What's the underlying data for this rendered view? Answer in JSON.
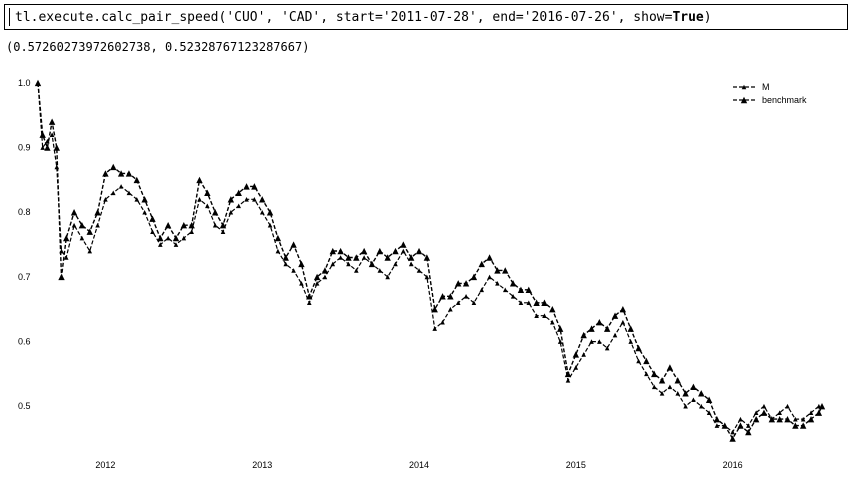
{
  "cell": {
    "code_prefix": "tl.execute.calc_pair_speed('CUO', 'CAD', start='2011-07-28', end='2016-07-26', show=",
    "code_keyword": "True",
    "code_suffix": ")"
  },
  "output": {
    "text": "(0.57260273972602738, 0.52328767123287667)"
  },
  "chart_data": {
    "type": "line",
    "title": "",
    "xlabel": "",
    "ylabel": "",
    "xlim": [
      2011.57,
      2016.57
    ],
    "ylim": [
      0.44,
      1.02
    ],
    "xticks": [
      "2012",
      "2013",
      "2014",
      "2015",
      "2016"
    ],
    "yticks": [
      "1.0",
      "0.9",
      "0.8",
      "0.7",
      "0.6",
      "0.5"
    ],
    "legend_position": "top-right",
    "grid": false,
    "series": [
      {
        "name": "M",
        "style": "dashed-small-triangle",
        "x": [
          2011.57,
          2011.6,
          2011.63,
          2011.66,
          2011.69,
          2011.72,
          2011.75,
          2011.8,
          2011.85,
          2011.9,
          2011.95,
          2012.0,
          2012.05,
          2012.1,
          2012.15,
          2012.2,
          2012.25,
          2012.3,
          2012.35,
          2012.4,
          2012.45,
          2012.5,
          2012.55,
          2012.6,
          2012.65,
          2012.7,
          2012.75,
          2012.8,
          2012.85,
          2012.9,
          2012.95,
          2013.0,
          2013.05,
          2013.1,
          2013.15,
          2013.2,
          2013.25,
          2013.3,
          2013.35,
          2013.4,
          2013.45,
          2013.5,
          2013.55,
          2013.6,
          2013.65,
          2013.7,
          2013.75,
          2013.8,
          2013.85,
          2013.9,
          2013.95,
          2014.0,
          2014.05,
          2014.1,
          2014.15,
          2014.2,
          2014.25,
          2014.3,
          2014.35,
          2014.4,
          2014.45,
          2014.5,
          2014.55,
          2014.6,
          2014.65,
          2014.7,
          2014.75,
          2014.8,
          2014.85,
          2014.9,
          2014.95,
          2015.0,
          2015.05,
          2015.1,
          2015.15,
          2015.2,
          2015.25,
          2015.3,
          2015.35,
          2015.4,
          2015.45,
          2015.5,
          2015.55,
          2015.6,
          2015.65,
          2015.7,
          2015.75,
          2015.8,
          2015.85,
          2015.9,
          2015.95,
          2016.0,
          2016.05,
          2016.1,
          2016.15,
          2016.2,
          2016.25,
          2016.3,
          2016.35,
          2016.4,
          2016.45,
          2016.5,
          2016.55,
          2016.57
        ],
        "values": [
          1.0,
          0.9,
          0.91,
          0.92,
          0.87,
          0.74,
          0.73,
          0.78,
          0.76,
          0.74,
          0.78,
          0.82,
          0.83,
          0.84,
          0.83,
          0.82,
          0.8,
          0.77,
          0.75,
          0.76,
          0.75,
          0.76,
          0.77,
          0.82,
          0.81,
          0.78,
          0.77,
          0.8,
          0.81,
          0.82,
          0.82,
          0.8,
          0.78,
          0.74,
          0.72,
          0.71,
          0.69,
          0.66,
          0.69,
          0.7,
          0.72,
          0.73,
          0.72,
          0.71,
          0.73,
          0.72,
          0.71,
          0.7,
          0.72,
          0.74,
          0.72,
          0.71,
          0.7,
          0.62,
          0.63,
          0.65,
          0.66,
          0.67,
          0.66,
          0.68,
          0.7,
          0.69,
          0.68,
          0.67,
          0.66,
          0.66,
          0.64,
          0.64,
          0.63,
          0.6,
          0.54,
          0.56,
          0.58,
          0.6,
          0.6,
          0.59,
          0.61,
          0.63,
          0.6,
          0.57,
          0.55,
          0.53,
          0.52,
          0.53,
          0.52,
          0.5,
          0.51,
          0.5,
          0.49,
          0.47,
          0.47,
          0.46,
          0.48,
          0.47,
          0.49,
          0.5,
          0.48,
          0.49,
          0.5,
          0.48,
          0.48,
          0.49,
          0.5,
          0.5
        ]
      },
      {
        "name": "benchmark",
        "style": "dashed-large-triangle",
        "x": [
          2011.57,
          2011.6,
          2011.63,
          2011.66,
          2011.69,
          2011.72,
          2011.75,
          2011.8,
          2011.85,
          2011.9,
          2011.95,
          2012.0,
          2012.05,
          2012.1,
          2012.15,
          2012.2,
          2012.25,
          2012.3,
          2012.35,
          2012.4,
          2012.45,
          2012.5,
          2012.55,
          2012.6,
          2012.65,
          2012.7,
          2012.75,
          2012.8,
          2012.85,
          2012.9,
          2012.95,
          2013.0,
          2013.05,
          2013.1,
          2013.15,
          2013.2,
          2013.25,
          2013.3,
          2013.35,
          2013.4,
          2013.45,
          2013.5,
          2013.55,
          2013.6,
          2013.65,
          2013.7,
          2013.75,
          2013.8,
          2013.85,
          2013.9,
          2013.95,
          2014.0,
          2014.05,
          2014.1,
          2014.15,
          2014.2,
          2014.25,
          2014.3,
          2014.35,
          2014.4,
          2014.45,
          2014.5,
          2014.55,
          2014.6,
          2014.65,
          2014.7,
          2014.75,
          2014.8,
          2014.85,
          2014.9,
          2014.95,
          2015.0,
          2015.05,
          2015.1,
          2015.15,
          2015.2,
          2015.25,
          2015.3,
          2015.35,
          2015.4,
          2015.45,
          2015.5,
          2015.55,
          2015.6,
          2015.65,
          2015.7,
          2015.75,
          2015.8,
          2015.85,
          2015.9,
          2015.95,
          2016.0,
          2016.05,
          2016.1,
          2016.15,
          2016.2,
          2016.25,
          2016.3,
          2016.35,
          2016.4,
          2016.45,
          2016.5,
          2016.55,
          2016.57
        ],
        "values": [
          1.0,
          0.92,
          0.9,
          0.94,
          0.9,
          0.7,
          0.76,
          0.8,
          0.78,
          0.77,
          0.8,
          0.86,
          0.87,
          0.86,
          0.86,
          0.85,
          0.82,
          0.79,
          0.76,
          0.78,
          0.76,
          0.78,
          0.78,
          0.85,
          0.83,
          0.8,
          0.78,
          0.82,
          0.83,
          0.84,
          0.84,
          0.82,
          0.8,
          0.76,
          0.73,
          0.75,
          0.72,
          0.67,
          0.7,
          0.71,
          0.74,
          0.74,
          0.73,
          0.73,
          0.74,
          0.72,
          0.74,
          0.73,
          0.74,
          0.75,
          0.73,
          0.74,
          0.73,
          0.65,
          0.67,
          0.67,
          0.69,
          0.69,
          0.7,
          0.72,
          0.73,
          0.71,
          0.71,
          0.69,
          0.68,
          0.68,
          0.66,
          0.66,
          0.65,
          0.62,
          0.55,
          0.58,
          0.61,
          0.62,
          0.63,
          0.62,
          0.64,
          0.65,
          0.62,
          0.59,
          0.57,
          0.55,
          0.54,
          0.56,
          0.54,
          0.52,
          0.53,
          0.52,
          0.51,
          0.48,
          0.47,
          0.45,
          0.47,
          0.46,
          0.48,
          0.49,
          0.48,
          0.48,
          0.48,
          0.47,
          0.47,
          0.48,
          0.49,
          0.5
        ]
      }
    ]
  }
}
